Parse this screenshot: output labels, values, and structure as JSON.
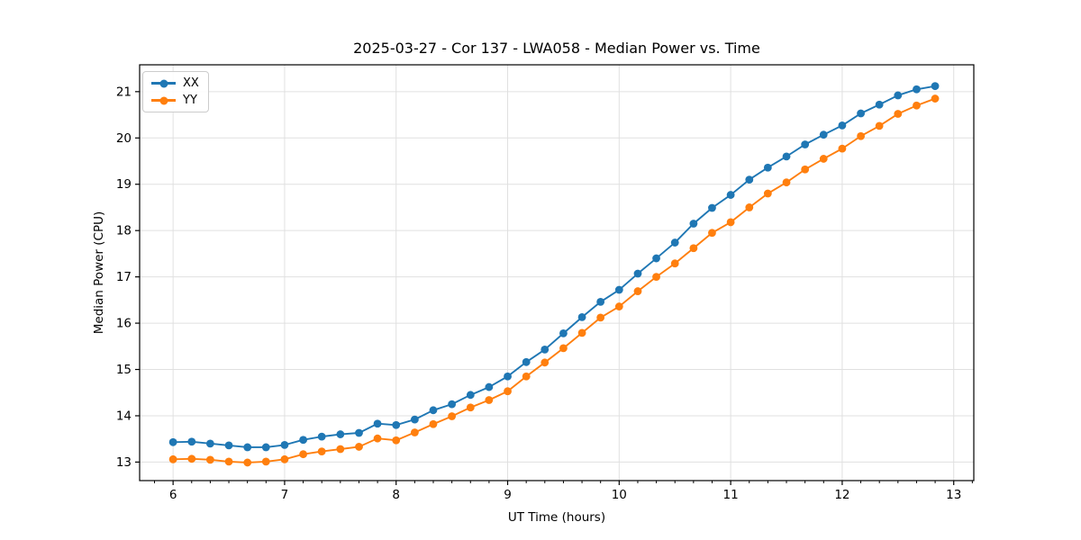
{
  "figure": {
    "background": "#ffffff"
  },
  "chart_data": {
    "type": "line",
    "title": "2025-03-27 - Cor 137 - LWA058 - Median Power vs. Time",
    "xlabel": "UT Time (hours)",
    "ylabel": "Median Power (CPU)",
    "xlim": [
      5.7,
      13.18
    ],
    "ylim": [
      12.6,
      21.58
    ],
    "xticks": [
      6,
      7,
      8,
      9,
      10,
      11,
      12,
      13
    ],
    "yticks": [
      13,
      14,
      15,
      16,
      17,
      18,
      19,
      20,
      21
    ],
    "x_minor_tick_step": 0.1667,
    "grid": true,
    "grid_color": "#e0e0e0",
    "spine_color": "#000000",
    "legend": {
      "position": "upper left",
      "entries": [
        "XX",
        "YY"
      ]
    },
    "x": [
      6.0,
      6.167,
      6.333,
      6.5,
      6.667,
      6.833,
      7.0,
      7.167,
      7.333,
      7.5,
      7.667,
      7.833,
      8.0,
      8.167,
      8.333,
      8.5,
      8.667,
      8.833,
      9.0,
      9.167,
      9.333,
      9.5,
      9.667,
      9.833,
      10.0,
      10.167,
      10.333,
      10.5,
      10.667,
      10.833,
      11.0,
      11.167,
      11.333,
      11.5,
      11.667,
      11.833,
      12.0,
      12.167,
      12.333,
      12.5,
      12.667,
      12.833
    ],
    "series": [
      {
        "name": "XX",
        "color": "#1f77b4",
        "marker": "circle",
        "values": [
          13.43,
          13.44,
          13.4,
          13.36,
          13.32,
          13.32,
          13.37,
          13.48,
          13.55,
          13.6,
          13.63,
          13.83,
          13.8,
          13.92,
          14.12,
          14.25,
          14.45,
          14.62,
          14.85,
          15.16,
          15.43,
          15.78,
          16.13,
          16.46,
          16.72,
          17.07,
          17.4,
          17.74,
          18.15,
          18.49,
          18.77,
          19.1,
          19.36,
          19.6,
          19.86,
          20.07,
          20.27,
          20.53,
          20.72,
          20.92,
          21.05,
          21.12
        ]
      },
      {
        "name": "YY",
        "color": "#ff7f0e",
        "marker": "circle",
        "values": [
          13.06,
          13.07,
          13.05,
          13.01,
          12.99,
          13.01,
          13.06,
          13.17,
          13.23,
          13.28,
          13.33,
          13.51,
          13.47,
          13.64,
          13.82,
          13.99,
          14.18,
          14.34,
          14.53,
          14.85,
          15.15,
          15.46,
          15.79,
          16.12,
          16.36,
          16.69,
          17.0,
          17.29,
          17.62,
          17.95,
          18.18,
          18.5,
          18.8,
          19.04,
          19.32,
          19.55,
          19.77,
          20.04,
          20.26,
          20.52,
          20.7,
          20.85
        ]
      }
    ]
  }
}
